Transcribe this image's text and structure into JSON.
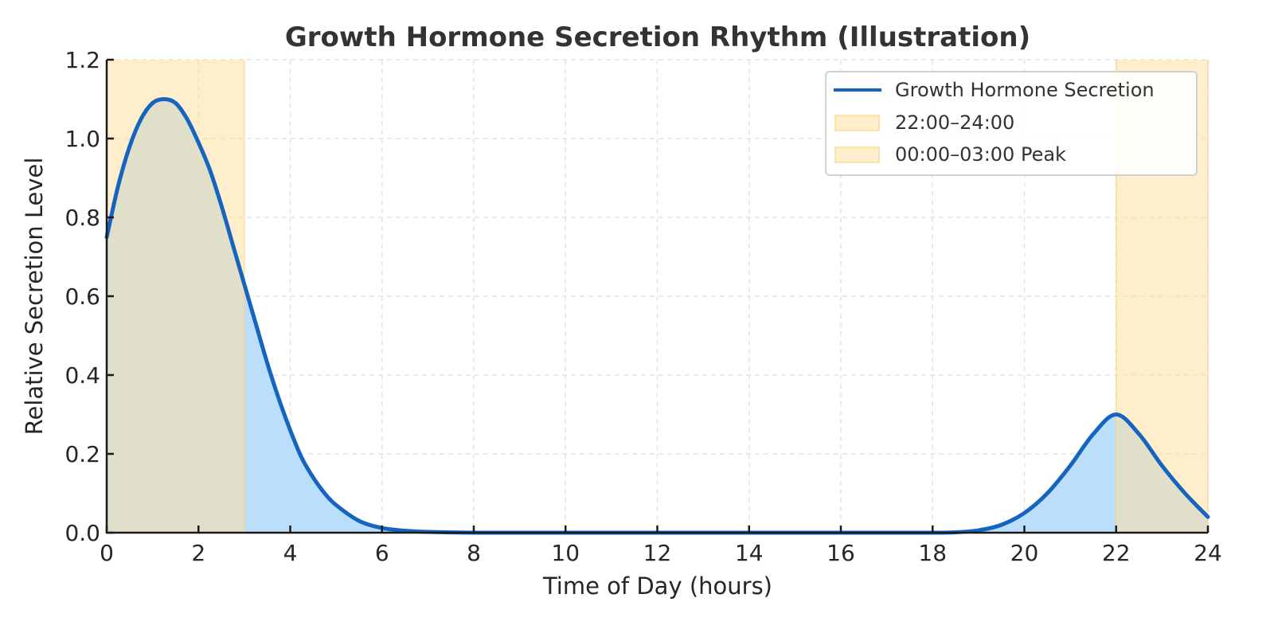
{
  "chart_data": {
    "type": "area",
    "title": "Growth Hormone Secretion Rhythm (Illustration)",
    "xlabel": "Time of Day (hours)",
    "ylabel": "Relative Secretion Level",
    "xlim": [
      0,
      24
    ],
    "ylim": [
      0,
      1.2
    ],
    "xticks": [
      "0",
      "2",
      "4",
      "6",
      "8",
      "10",
      "12",
      "14",
      "16",
      "18",
      "20",
      "22",
      "24"
    ],
    "yticks": [
      "0.0",
      "0.2",
      "0.4",
      "0.6",
      "0.8",
      "1.0",
      "1.2"
    ],
    "grid": true,
    "legend_position": "upper right",
    "series": [
      {
        "name": "Growth Hormone Secretion",
        "color": "#1565c0",
        "fill_color": "#bbdefb",
        "x": [
          0,
          0.25,
          0.5,
          0.75,
          1.0,
          1.25,
          1.5,
          1.75,
          2.0,
          2.25,
          2.5,
          2.75,
          3.0,
          3.25,
          3.5,
          3.75,
          4.0,
          4.25,
          4.5,
          4.75,
          5.0,
          5.5,
          6.0,
          6.5,
          7.0,
          8,
          10,
          12,
          14,
          16,
          18,
          18.5,
          19.0,
          19.5,
          20.0,
          20.5,
          21.0,
          21.5,
          22.0,
          22.5,
          23.0,
          23.5,
          24.0
        ],
        "values": [
          0.75,
          0.88,
          0.98,
          1.05,
          1.09,
          1.1,
          1.09,
          1.05,
          0.99,
          0.92,
          0.83,
          0.73,
          0.63,
          0.53,
          0.43,
          0.34,
          0.26,
          0.19,
          0.14,
          0.1,
          0.07,
          0.03,
          0.012,
          0.005,
          0.002,
          0.0,
          0.0,
          0.0,
          0.0,
          0.0,
          0.0,
          0.001,
          0.006,
          0.02,
          0.05,
          0.1,
          0.17,
          0.25,
          0.3,
          0.25,
          0.17,
          0.1,
          0.04
        ]
      }
    ],
    "shaded_regions": [
      {
        "name": "22:00–24:00",
        "x_start": 22,
        "x_end": 24,
        "color": "#ffe0a3",
        "opacity": 0.55
      },
      {
        "name": "00:00–03:00 Peak",
        "x_start": 0,
        "x_end": 3,
        "color": "#ffe0a3",
        "opacity": 0.55
      }
    ],
    "legend": [
      "Growth Hormone Secretion",
      "22:00–24:00",
      "00:00–03:00 Peak"
    ]
  }
}
